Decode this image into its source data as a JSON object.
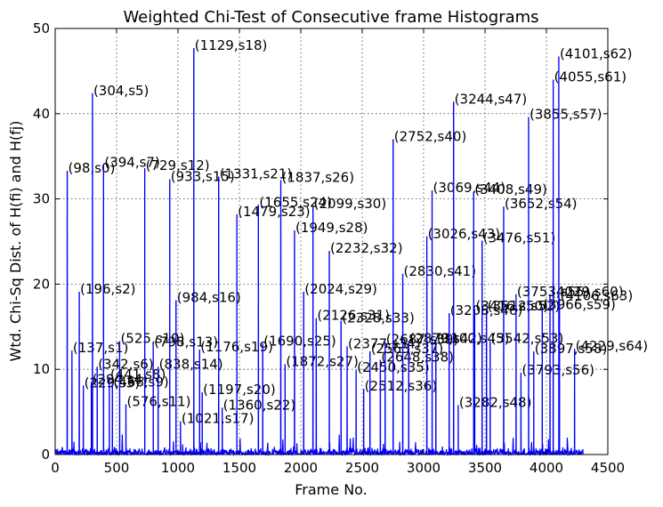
{
  "chart_data": {
    "type": "line",
    "title": "Weighted Chi-Test of Consecutive frame Histograms",
    "xlabel": "Frame No.",
    "ylabel": "Wtd. Chi-Sq Dist. of H(fi) and H(fj)",
    "xlim": [
      0,
      4500
    ],
    "ylim": [
      0,
      50
    ],
    "x_ticks": [
      0,
      500,
      1000,
      1500,
      2000,
      2500,
      3000,
      3500,
      4000,
      4500
    ],
    "y_ticks": [
      0,
      10,
      20,
      30,
      40,
      50
    ],
    "grid": true,
    "series": [
      {
        "color": "#0000ff",
        "peaks": [
          {
            "x": 98,
            "y": 33.3,
            "label": "(98,s0)"
          },
          {
            "x": 137,
            "y": 12.2,
            "label": "(137,s1)"
          },
          {
            "x": 196,
            "y": 19.1,
            "label": "(196,s2)"
          },
          {
            "x": 229,
            "y": 8.1,
            "label": "(229,s3)"
          },
          {
            "x": 294,
            "y": 8.5,
            "label": "(294,s4)"
          },
          {
            "x": 304,
            "y": 42.4,
            "label": "(304,s5)"
          },
          {
            "x": 342,
            "y": 10.3,
            "label": "(342,s6)"
          },
          {
            "x": 394,
            "y": 34.0,
            "label": "(394,s7)"
          },
          {
            "x": 441,
            "y": 9.1,
            "label": "(441,s8)"
          },
          {
            "x": 466,
            "y": 8.2,
            "label": "(466,s9)"
          },
          {
            "x": 525,
            "y": 13.3,
            "label": "(525,s10)"
          },
          {
            "x": 576,
            "y": 5.9,
            "label": "(576,s11)"
          },
          {
            "x": 729,
            "y": 33.6,
            "label": "(729,s12)"
          },
          {
            "x": 798,
            "y": 12.9,
            "label": "(798,s13)"
          },
          {
            "x": 838,
            "y": 10.3,
            "label": "(838,s14)"
          },
          {
            "x": 933,
            "y": 32.3,
            "label": "(933,s15)"
          },
          {
            "x": 984,
            "y": 18.1,
            "label": "(984,s16)"
          },
          {
            "x": 1021,
            "y": 3.9,
            "label": "(1021,s17)"
          },
          {
            "x": 1129,
            "y": 47.7,
            "label": "(1129,s18)"
          },
          {
            "x": 1176,
            "y": 12.3,
            "label": "(1176,s19)"
          },
          {
            "x": 1197,
            "y": 7.3,
            "label": "(1197,s20)"
          },
          {
            "x": 1331,
            "y": 32.6,
            "label": "(1331,s21)"
          },
          {
            "x": 1360,
            "y": 5.5,
            "label": "(1360,s22)"
          },
          {
            "x": 1479,
            "y": 28.2,
            "label": "(1479,s23)"
          },
          {
            "x": 1655,
            "y": 29.3,
            "label": "(1655,s24)"
          },
          {
            "x": 1690,
            "y": 13.0,
            "label": "(1690,s25)"
          },
          {
            "x": 1837,
            "y": 32.2,
            "label": "(1837,s26)"
          },
          {
            "x": 1872,
            "y": 10.6,
            "label": "(1872,s27)"
          },
          {
            "x": 1949,
            "y": 26.3,
            "label": "(1949,s28)"
          },
          {
            "x": 2024,
            "y": 19.1,
            "label": "(2024,s29)"
          },
          {
            "x": 2099,
            "y": 29.1,
            "label": "(2099,s30)"
          },
          {
            "x": 2126,
            "y": 16.0,
            "label": "(2126,s31)"
          },
          {
            "x": 2232,
            "y": 23.9,
            "label": "(2232,s32)"
          },
          {
            "x": 2328,
            "y": 15.7,
            "label": "(2328,s33)"
          },
          {
            "x": 2377,
            "y": 12.7,
            "label": "(2377,s34)"
          },
          {
            "x": 2450,
            "y": 9.9,
            "label": "(2450,s35)"
          },
          {
            "x": 2512,
            "y": 7.7,
            "label": "(2512,s36)"
          },
          {
            "x": 2563,
            "y": 12.1,
            "label": "(2563,s37)"
          },
          {
            "x": 2648,
            "y": 11.1,
            "label": "(2648,s38)"
          },
          {
            "x": 2687,
            "y": 13.2,
            "label": "(2687,s39)"
          },
          {
            "x": 2752,
            "y": 37.0,
            "label": "(2752,s40)"
          },
          {
            "x": 2830,
            "y": 21.2,
            "label": "(2830,s41)"
          },
          {
            "x": 2879,
            "y": 13.3,
            "label": "(2879,s42)"
          },
          {
            "x": 3026,
            "y": 25.6,
            "label": "(3026,s43)"
          },
          {
            "x": 3069,
            "y": 31.0,
            "label": "(3069,s44)"
          },
          {
            "x": 3100,
            "y": 13.3,
            "label": "(3100,s45)"
          },
          {
            "x": 3208,
            "y": 16.6,
            "label": "(3208,s46)"
          },
          {
            "x": 3244,
            "y": 41.4,
            "label": "(3244,s47)"
          },
          {
            "x": 3282,
            "y": 5.8,
            "label": "(3282,s48)"
          },
          {
            "x": 3408,
            "y": 30.8,
            "label": "(3408,s49)"
          },
          {
            "x": 3416,
            "y": 17.1,
            "label": "(3416,s50)"
          },
          {
            "x": 3476,
            "y": 25.1,
            "label": "(3476,s51)"
          },
          {
            "x": 3512,
            "y": 17.1,
            "label": "(3512,s52)"
          },
          {
            "x": 3542,
            "y": 13.3,
            "label": "(3542,s53)"
          },
          {
            "x": 3652,
            "y": 29.1,
            "label": "(3652,s54)"
          },
          {
            "x": 3753,
            "y": 18.8,
            "label": "(3753,s55)"
          },
          {
            "x": 3793,
            "y": 9.6,
            "label": "(3793,s56)"
          },
          {
            "x": 3855,
            "y": 39.6,
            "label": "(3855,s57)"
          },
          {
            "x": 3897,
            "y": 12.1,
            "label": "(3897,s58)"
          },
          {
            "x": 3966,
            "y": 17.3,
            "label": "(3966,s59)"
          },
          {
            "x": 4029,
            "y": 18.8,
            "label": "(4029,s60)"
          },
          {
            "x": 4055,
            "y": 44.0,
            "label": "(4055,s61)"
          },
          {
            "x": 4101,
            "y": 46.7,
            "label": "(4101,s62)"
          },
          {
            "x": 4106,
            "y": 18.3,
            "label": "(4106,s63)"
          },
          {
            "x": 4229,
            "y": 12.4,
            "label": "(4229,s64)"
          }
        ]
      }
    ]
  }
}
